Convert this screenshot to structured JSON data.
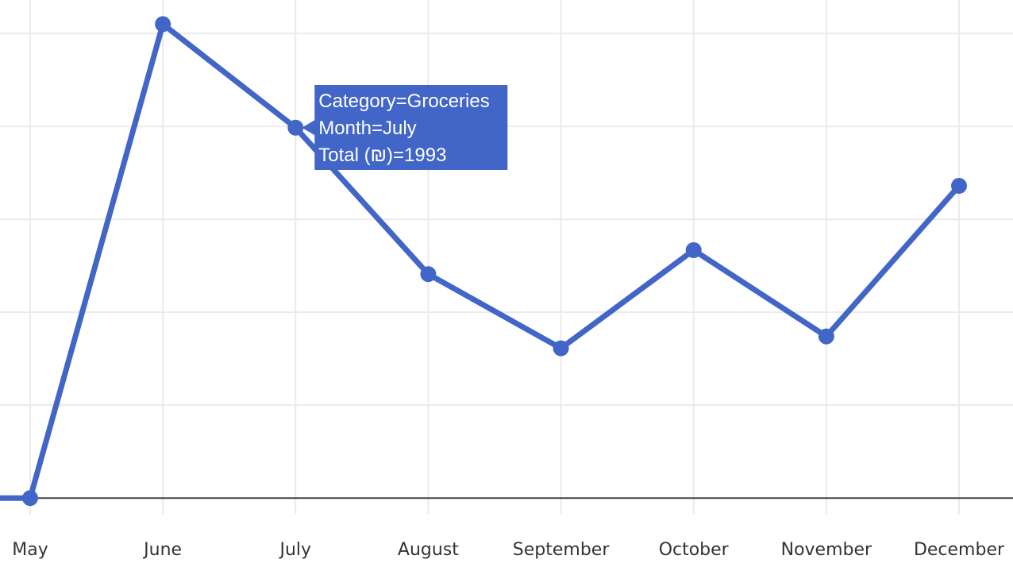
{
  "chart_data": {
    "type": "line",
    "categories": [
      "May",
      "June",
      "July",
      "August",
      "September",
      "October",
      "November",
      "December"
    ],
    "series": [
      {
        "name": "Groceries",
        "values": [
          0,
          2550,
          1993,
          1205,
          806,
          1334,
          870,
          1680
        ]
      }
    ],
    "title": "",
    "xlabel": "",
    "ylabel": "",
    "ylim": [
      -200,
      2680
    ],
    "grid": true,
    "line_color": "#4266c8",
    "tooltip": {
      "category": "July",
      "lines": [
        "Category=Groceries",
        "Month=July",
        "Total (₪)=1993"
      ],
      "background": "#4266c8"
    }
  }
}
